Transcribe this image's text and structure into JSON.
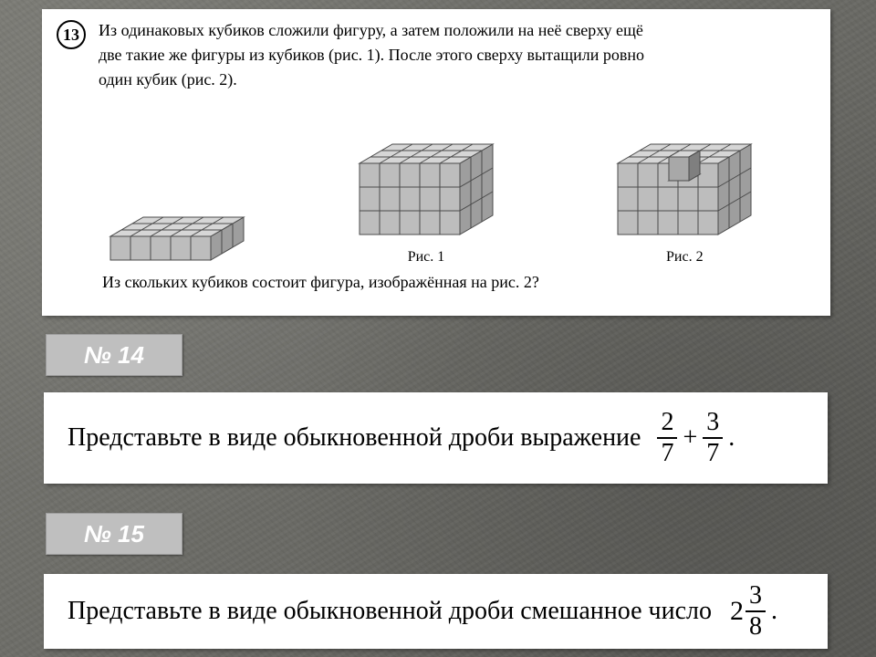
{
  "problem13": {
    "number": "13",
    "text_line1": "Из одинаковых кубиков сложили фигуру, а затем положили на неё сверху ещё",
    "text_line2": "две такие же фигуры из кубиков (рис. 1). После этого сверху вытащили ровно",
    "text_line3": "один кубик (рис. 2).",
    "fig1_label": "Рис. 1",
    "fig2_label": "Рис. 2",
    "question": "Из скольких кубиков состоит фигура, изображённая на рис. 2?",
    "cuboid_layer1": {
      "cols": 5,
      "rows": 3,
      "layers": 1
    },
    "cuboid_stack": {
      "cols": 5,
      "rows": 3,
      "layers": 3
    },
    "cuboid_missing": {
      "cols": 5,
      "rows": 3,
      "layers": 3,
      "missing_top": true
    },
    "cube_face_color": "#bdbdbd",
    "cube_top_color": "#d6d6d6",
    "cube_side_color": "#9e9e9e",
    "cube_edge_color": "#4a4a4a"
  },
  "badge14": "№ 14",
  "problem14": {
    "prefix": "Представьте в виде обыкновенной дроби выражение",
    "f1_num": "2",
    "f1_den": "7",
    "op": "+",
    "f2_num": "3",
    "f2_den": "7",
    "suffix": "."
  },
  "badge15": "№ 15",
  "problem15": {
    "prefix": "Представьте в виде обыкновенной дроби смешанное число",
    "whole": "2",
    "f_num": "3",
    "f_den": "8",
    "suffix": "."
  },
  "colors": {
    "panel_bg": "#ffffff",
    "badge_bg": "#bfbfbf",
    "badge_fg": "#ffffff",
    "text": "#000000"
  }
}
